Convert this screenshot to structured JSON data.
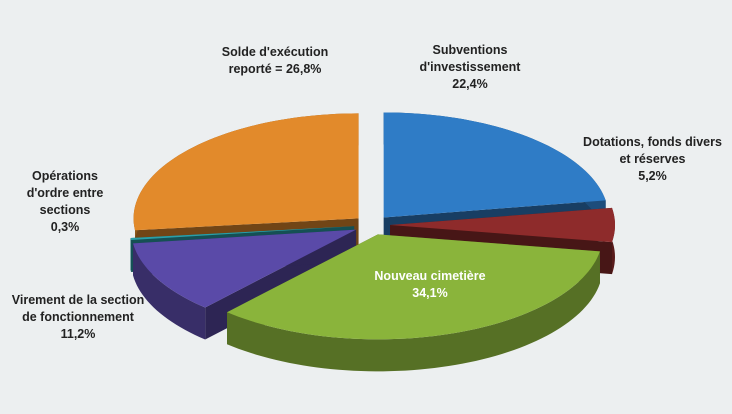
{
  "chart_data": {
    "type": "pie3d",
    "categories": [
      "Subventions d'investissement",
      "Dotations, fonds divers et réserves",
      "Nouveau cimetière",
      "Virement de la section de fonctionnement",
      "Opérations d'ordre entre sections",
      "Solde d'exécution reporté"
    ],
    "values": [
      22.4,
      5.2,
      34.1,
      11.2,
      0.3,
      26.8
    ],
    "value_labels": [
      "22,4%",
      "5,2%",
      "34,1%",
      "11,2%",
      "0,3%",
      "= 26,8%"
    ],
    "colors": [
      "#2f7cc6",
      "#8e2b2b",
      "#8ab43b",
      "#5a4aa8",
      "#2a9fa8",
      "#e28a2b"
    ]
  }
}
